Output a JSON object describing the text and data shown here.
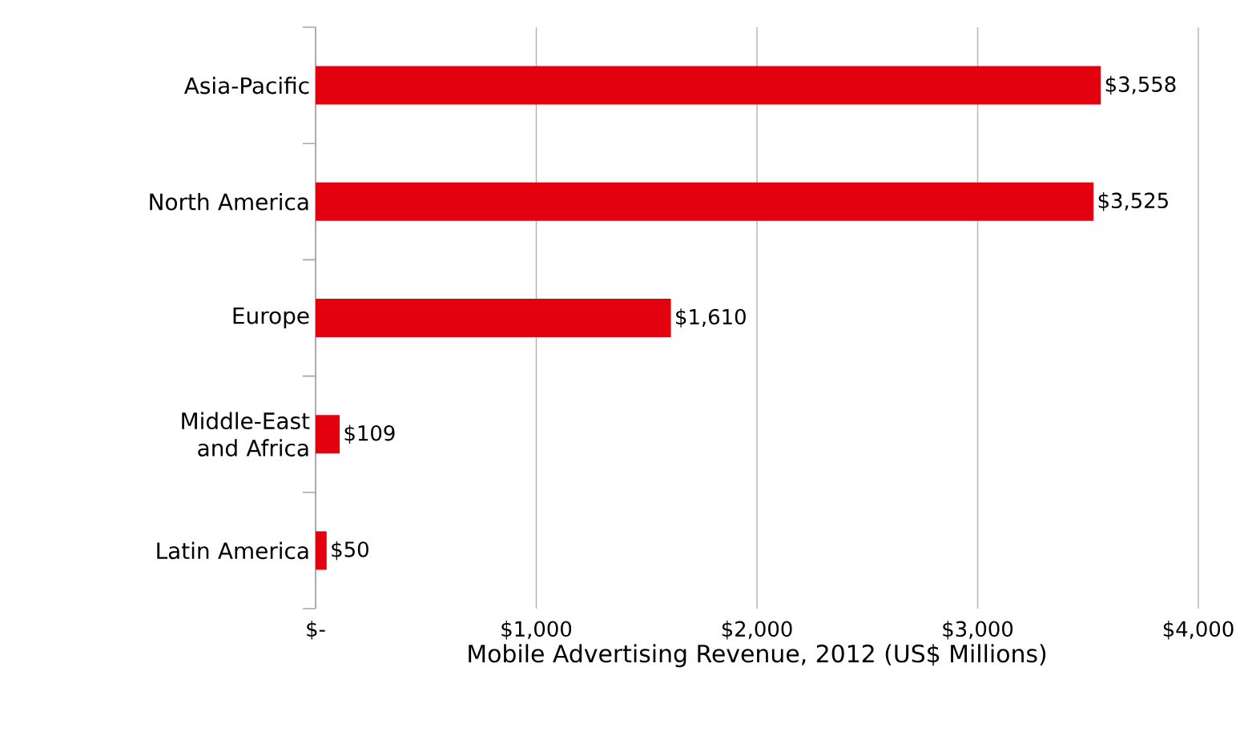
{
  "chart_data": {
    "type": "bar",
    "orientation": "horizontal",
    "xlabel": "Mobile Advertising Revenue, 2012 (US$ Millions)",
    "categories": [
      "Asia-Pacific",
      "North America",
      "Europe",
      "Middle-East and Africa",
      "Latin America"
    ],
    "values": [
      3558,
      3525,
      1610,
      109,
      50
    ],
    "value_labels": [
      "$3,558",
      "$3,525",
      "$1,610",
      "$109",
      "$50"
    ],
    "color": "#e3000f",
    "xlim": [
      0,
      4000
    ],
    "xticks": [
      {
        "value": 0,
        "label": "$-"
      },
      {
        "value": 1000,
        "label": "$1,000"
      },
      {
        "value": 2000,
        "label": "$2,000"
      },
      {
        "value": 3000,
        "label": "$3,000"
      },
      {
        "value": 4000,
        "label": "$4,000"
      }
    ],
    "grid": "x"
  }
}
